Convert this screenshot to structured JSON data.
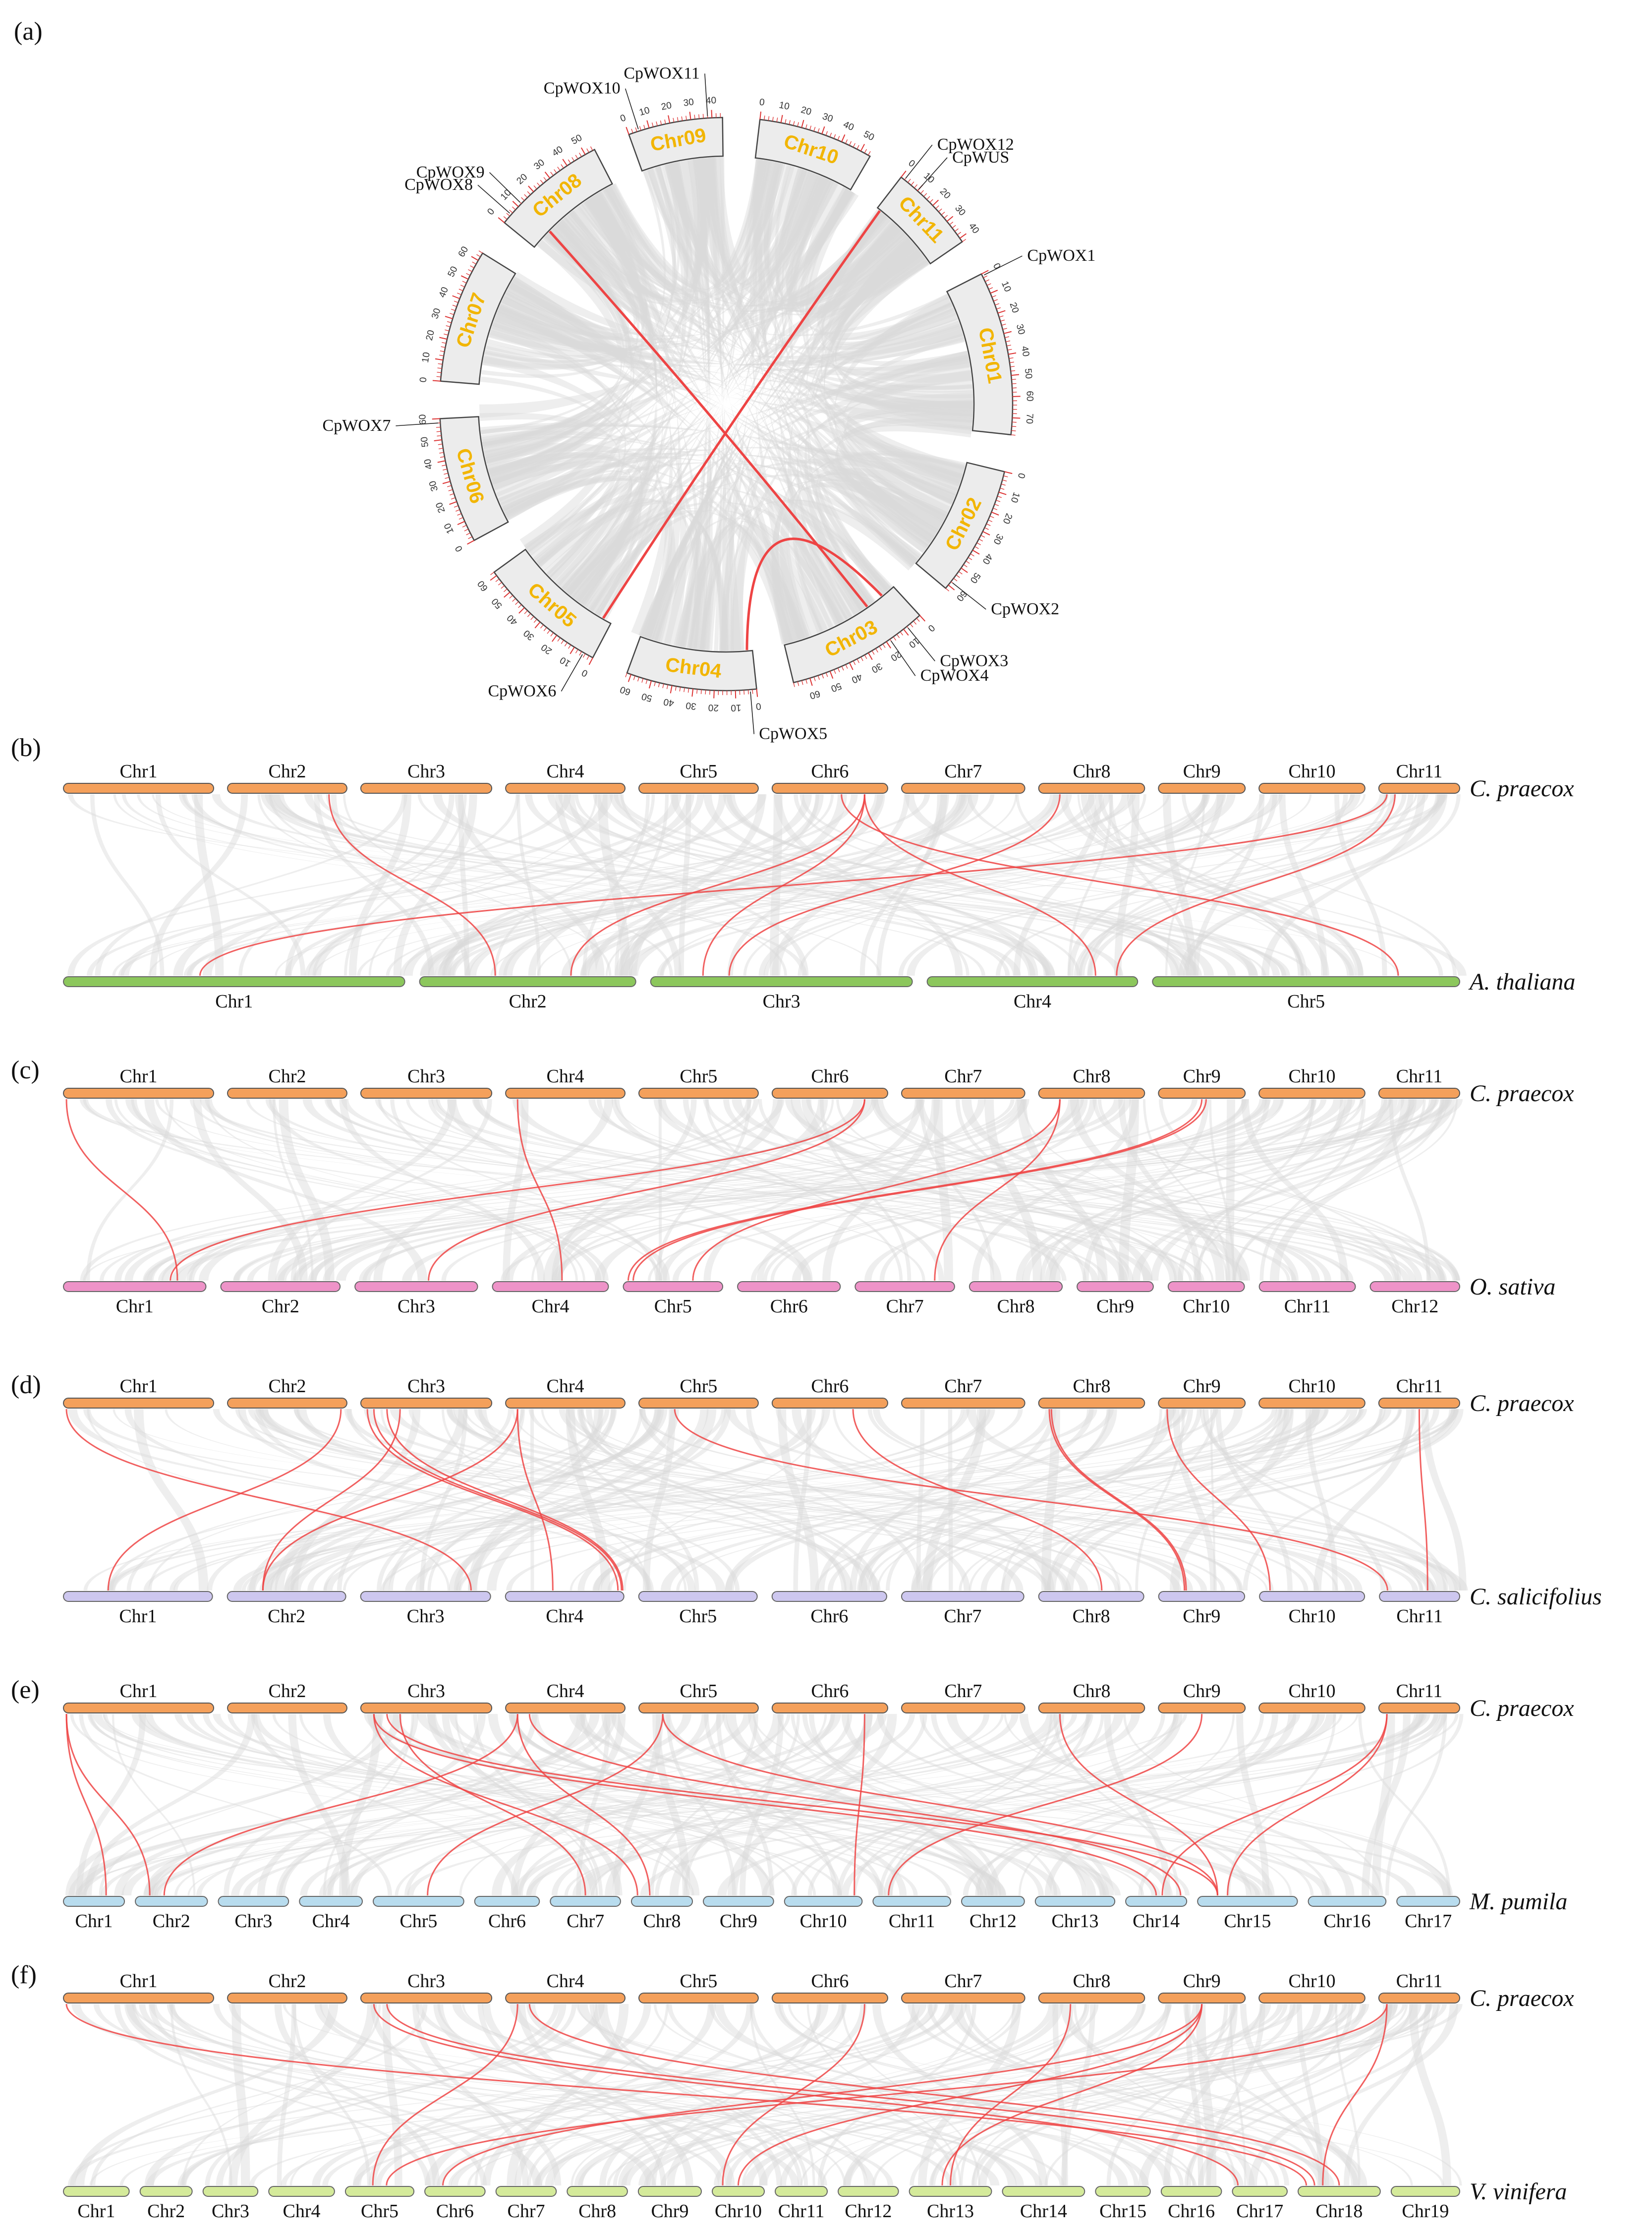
{
  "figure": {
    "panel_labels": [
      "(a)",
      "(b)",
      "(c)",
      "(d)",
      "(e)",
      "(f)"
    ],
    "reference_species": "C. praecox"
  },
  "colors": {
    "praecox": "#f4a05b",
    "a_thaliana": "#8cc75c",
    "o_sativa": "#ee93c8",
    "c_salicifolius": "#cdc7ef",
    "m_pumila": "#b8dcee",
    "v_vinifera": "#d4ea9a",
    "syntenic_red": "#ee4444",
    "collinear_grey": "#d9d9d9",
    "circos_label": "#f2b500"
  },
  "circos": {
    "chromosomes": [
      {
        "name": "Chr01",
        "length": 78
      },
      {
        "name": "Chr02",
        "length": 62
      },
      {
        "name": "Chr03",
        "length": 68
      },
      {
        "name": "Chr04",
        "length": 62
      },
      {
        "name": "Chr05",
        "length": 62
      },
      {
        "name": "Chr06",
        "length": 60
      },
      {
        "name": "Chr07",
        "length": 64
      },
      {
        "name": "Chr08",
        "length": 55
      },
      {
        "name": "Chr09",
        "length": 45
      },
      {
        "name": "Chr10",
        "length": 55
      },
      {
        "name": "Chr11",
        "length": 42
      }
    ],
    "genes": [
      {
        "name": "CpWOX1",
        "chr": "Chr01",
        "pos": 1
      },
      {
        "name": "CpWOX2",
        "chr": "Chr02",
        "pos": 58
      },
      {
        "name": "CpWOX3",
        "chr": "Chr03",
        "pos": 8
      },
      {
        "name": "CpWOX4",
        "chr": "Chr03",
        "pos": 18
      },
      {
        "name": "CpWOX5",
        "chr": "Chr04",
        "pos": 3
      },
      {
        "name": "CpWOX6",
        "chr": "Chr05",
        "pos": 5
      },
      {
        "name": "CpWOX7",
        "chr": "Chr06",
        "pos": 58
      },
      {
        "name": "CpWOX8",
        "chr": "Chr08",
        "pos": 5
      },
      {
        "name": "CpWOX9",
        "chr": "Chr08",
        "pos": 12
      },
      {
        "name": "CpWOX10",
        "chr": "Chr09",
        "pos": 5
      },
      {
        "name": "CpWOX11",
        "chr": "Chr09",
        "pos": 38
      },
      {
        "name": "CpWOX12",
        "chr": "Chr11",
        "pos": 2
      },
      {
        "name": "CpWUS",
        "chr": "Chr11",
        "pos": 10
      }
    ],
    "segmental_duplications": [
      {
        "from": "CpWOX12",
        "to": "CpWOX6"
      },
      {
        "from": "CpWOX9",
        "to": "CpWOX4"
      },
      {
        "from": "CpWOX5",
        "to": "CpWOX3"
      }
    ]
  },
  "panels": [
    {
      "label": "(b)",
      "top_species": "C. praecox",
      "bottom_species": "A. thaliana",
      "top_chrs": [
        "Chr1",
        "Chr2",
        "Chr3",
        "Chr4",
        "Chr5",
        "Chr6",
        "Chr7",
        "Chr8",
        "Chr9",
        "Chr10",
        "Chr11"
      ],
      "bottom_chrs": [
        "Chr1",
        "Chr2",
        "Chr3",
        "Chr4",
        "Chr5"
      ],
      "bottom_sizes": [
        30,
        19,
        23,
        18.5,
        27
      ],
      "links": [
        [
          1,
          0.85,
          1,
          0.35
        ],
        [
          5,
          0.8,
          1,
          0.7
        ],
        [
          5,
          0.8,
          3,
          0.8
        ],
        [
          5,
          0.6,
          4,
          0.8
        ],
        [
          7,
          0.2,
          2,
          0.3
        ],
        [
          10,
          0.1,
          0,
          0.4
        ],
        [
          10,
          0.2,
          3,
          0.9
        ],
        [
          5,
          0.8,
          2,
          0.2
        ]
      ]
    },
    {
      "label": "(c)",
      "top_species": "C. praecox",
      "bottom_species": "O. sativa",
      "top_chrs": [
        "Chr1",
        "Chr2",
        "Chr3",
        "Chr4",
        "Chr5",
        "Chr6",
        "Chr7",
        "Chr8",
        "Chr9",
        "Chr10",
        "Chr11"
      ],
      "bottom_chrs": [
        "Chr1",
        "Chr2",
        "Chr3",
        "Chr4",
        "Chr5",
        "Chr6",
        "Chr7",
        "Chr8",
        "Chr9",
        "Chr10",
        "Chr11",
        "Chr12"
      ],
      "bottom_sizes": [
        43,
        36,
        37,
        35,
        30,
        31,
        30,
        28,
        23,
        23,
        29,
        27
      ],
      "links": [
        [
          0,
          0.02,
          0,
          0.8
        ],
        [
          5,
          0.8,
          0,
          0.75
        ],
        [
          5,
          0.8,
          2,
          0.6
        ],
        [
          3,
          0.1,
          3,
          0.6
        ],
        [
          7,
          0.2,
          4,
          0.7
        ],
        [
          7,
          0.2,
          6,
          0.8
        ],
        [
          8,
          0.5,
          4,
          0.05
        ],
        [
          8,
          0.55,
          4,
          0.1
        ]
      ]
    },
    {
      "label": "(d)",
      "top_species": "C. praecox",
      "bottom_species": "C. salicifolius",
      "top_chrs": [
        "Chr1",
        "Chr2",
        "Chr3",
        "Chr4",
        "Chr5",
        "Chr6",
        "Chr7",
        "Chr8",
        "Chr9",
        "Chr10",
        "Chr11"
      ],
      "bottom_chrs": [
        "Chr1",
        "Chr2",
        "Chr3",
        "Chr4",
        "Chr5",
        "Chr6",
        "Chr7",
        "Chr8",
        "Chr9",
        "Chr10",
        "Chr11"
      ],
      "bottom_sizes": [
        78,
        62,
        68,
        62,
        62,
        60,
        64,
        55,
        45,
        55,
        42
      ],
      "links": [
        [
          0,
          0.02,
          2,
          0.85
        ],
        [
          1,
          0.95,
          0,
          0.3
        ],
        [
          2,
          0.05,
          3,
          0.95
        ],
        [
          2,
          0.1,
          3,
          0.98
        ],
        [
          2,
          0.2,
          3,
          0.99
        ],
        [
          2,
          0.3,
          1,
          0.3
        ],
        [
          3,
          0.1,
          1,
          0.3
        ],
        [
          3,
          0.1,
          3,
          0.4
        ],
        [
          4,
          0.3,
          10,
          0.1
        ],
        [
          5,
          0.7,
          7,
          0.6
        ],
        [
          7,
          0.1,
          8,
          0.3
        ],
        [
          7,
          0.12,
          8,
          0.32
        ],
        [
          8,
          0.1,
          9,
          0.1
        ],
        [
          10,
          0.5,
          10,
          0.6
        ]
      ]
    },
    {
      "label": "(e)",
      "top_species": "C. praecox",
      "bottom_species": "M. pumila",
      "top_chrs": [
        "Chr1",
        "Chr2",
        "Chr3",
        "Chr4",
        "Chr5",
        "Chr6",
        "Chr7",
        "Chr8",
        "Chr9",
        "Chr10",
        "Chr11"
      ],
      "bottom_chrs": [
        "Chr1",
        "Chr2",
        "Chr3",
        "Chr4",
        "Chr5",
        "Chr6",
        "Chr7",
        "Chr8",
        "Chr9",
        "Chr10",
        "Chr11",
        "Chr12",
        "Chr13",
        "Chr14",
        "Chr15",
        "Chr16",
        "Chr17"
      ],
      "bottom_sizes": [
        33,
        39,
        38,
        34,
        49,
        35,
        38,
        33,
        38,
        42,
        42,
        34,
        43,
        33,
        54,
        42,
        34
      ],
      "links": [
        [
          0,
          0.02,
          0,
          0.7
        ],
        [
          0,
          0.02,
          1,
          0.2
        ],
        [
          2,
          0.1,
          7,
          0.1
        ],
        [
          2,
          0.1,
          13,
          0.5
        ],
        [
          2,
          0.2,
          14,
          0.2
        ],
        [
          2,
          0.3,
          6,
          0.5
        ],
        [
          3,
          0.1,
          1,
          0.4
        ],
        [
          3,
          0.1,
          7,
          0.3
        ],
        [
          3,
          0.2,
          13,
          0.9
        ],
        [
          4,
          0.2,
          4,
          0.6
        ],
        [
          4,
          0.2,
          14,
          0.2
        ],
        [
          5,
          0.8,
          9,
          0.9
        ],
        [
          7,
          0.2,
          14,
          0.2
        ],
        [
          8,
          0.5,
          10,
          0.2
        ],
        [
          10,
          0.1,
          14,
          0.3
        ],
        [
          10,
          0.1,
          13,
          0.6
        ]
      ]
    },
    {
      "label": "(f)",
      "top_species": "C. praecox",
      "bottom_species": "V. vinifera",
      "top_chrs": [
        "Chr1",
        "Chr2",
        "Chr3",
        "Chr4",
        "Chr5",
        "Chr6",
        "Chr7",
        "Chr8",
        "Chr9",
        "Chr10",
        "Chr11"
      ],
      "bottom_chrs": [
        "Chr1",
        "Chr2",
        "Chr3",
        "Chr4",
        "Chr5",
        "Chr6",
        "Chr7",
        "Chr8",
        "Chr9",
        "Chr10",
        "Chr11",
        "Chr12",
        "Chr13",
        "Chr14",
        "Chr15",
        "Chr16",
        "Chr17",
        "Chr18",
        "Chr19"
      ],
      "bottom_sizes": [
        24,
        19,
        20,
        24,
        25,
        22,
        22,
        22,
        23,
        19,
        19,
        22,
        30,
        30,
        20,
        22,
        20,
        30,
        25
      ],
      "links": [
        [
          0,
          0.02,
          17,
          0.1
        ],
        [
          2,
          0.1,
          16,
          0.1
        ],
        [
          2,
          0.2,
          17,
          0.2
        ],
        [
          3,
          0.1,
          4,
          0.4
        ],
        [
          5,
          0.8,
          9,
          0.2
        ],
        [
          7,
          0.3,
          12,
          0.5
        ],
        [
          8,
          0.5,
          9,
          0.5
        ],
        [
          8,
          0.5,
          12,
          0.4
        ],
        [
          8,
          0.5,
          5,
          0.3
        ],
        [
          10,
          0.1,
          17,
          0.3
        ],
        [
          10,
          0.1,
          4,
          0.6
        ],
        [
          3,
          0.2,
          17,
          0.5
        ]
      ]
    }
  ]
}
